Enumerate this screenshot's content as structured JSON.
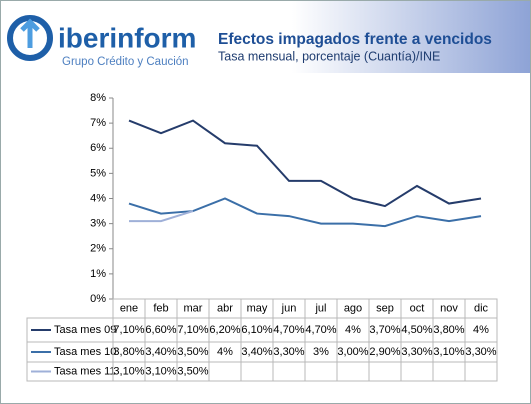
{
  "header": {
    "brand": "iberinform",
    "tagline": "Grupo Crédito y Caución",
    "title": "Efectos impagados frente a vencidos",
    "subtitle": "Tasa mensual, porcentaje (Cuantía)/INE"
  },
  "chart_data": {
    "type": "line",
    "categories": [
      "ene",
      "feb",
      "mar",
      "abr",
      "may",
      "jun",
      "jul",
      "ago",
      "sep",
      "oct",
      "nov",
      "dic"
    ],
    "series": [
      {
        "name": "Tasa mes 09",
        "color": "#253c6b",
        "values": [
          7.1,
          6.6,
          7.1,
          6.2,
          6.1,
          4.7,
          4.7,
          4,
          3.7,
          4.5,
          3.8,
          4
        ],
        "value_labels": [
          "7,10%",
          "6,60%",
          "7,10%",
          "6,20%",
          "6,10%",
          "4,70%",
          "4,70%",
          "4%",
          "3,70%",
          "4,50%",
          "3,80%",
          "4%"
        ]
      },
      {
        "name": "Tasa mes 10",
        "color": "#3b6fa8",
        "values": [
          3.8,
          3.4,
          3.5,
          4,
          3.4,
          3.3,
          3,
          3.0,
          2.9,
          3.3,
          3.1,
          3.3
        ],
        "value_labels": [
          "3,80%",
          "3,40%",
          "3,50%",
          "4%",
          "3,40%",
          "3,30%",
          "3%",
          "3,00%",
          "2,90%",
          "3,30%",
          "3,10%",
          "3,30%"
        ]
      },
      {
        "name": "Tasa mes 11",
        "color": "#9fb0d8",
        "values": [
          3.1,
          3.1,
          3.5,
          null,
          null,
          null,
          null,
          null,
          null,
          null,
          null,
          null
        ],
        "value_labels": [
          "3,10%",
          "3,10%",
          "3,50%",
          null,
          null,
          null,
          null,
          null,
          null,
          null,
          null,
          null
        ]
      }
    ],
    "ylim": [
      0,
      8
    ],
    "yticks": [
      {
        "value": 0,
        "label": "0%"
      },
      {
        "value": 1,
        "label": "1%"
      },
      {
        "value": 2,
        "label": "2%"
      },
      {
        "value": 3,
        "label": "3%"
      },
      {
        "value": 4,
        "label": "4%"
      },
      {
        "value": 5,
        "label": "5%"
      },
      {
        "value": 6,
        "label": "6%"
      },
      {
        "value": 7,
        "label": "7%"
      },
      {
        "value": 8,
        "label": "8%"
      }
    ],
    "grid": false
  }
}
